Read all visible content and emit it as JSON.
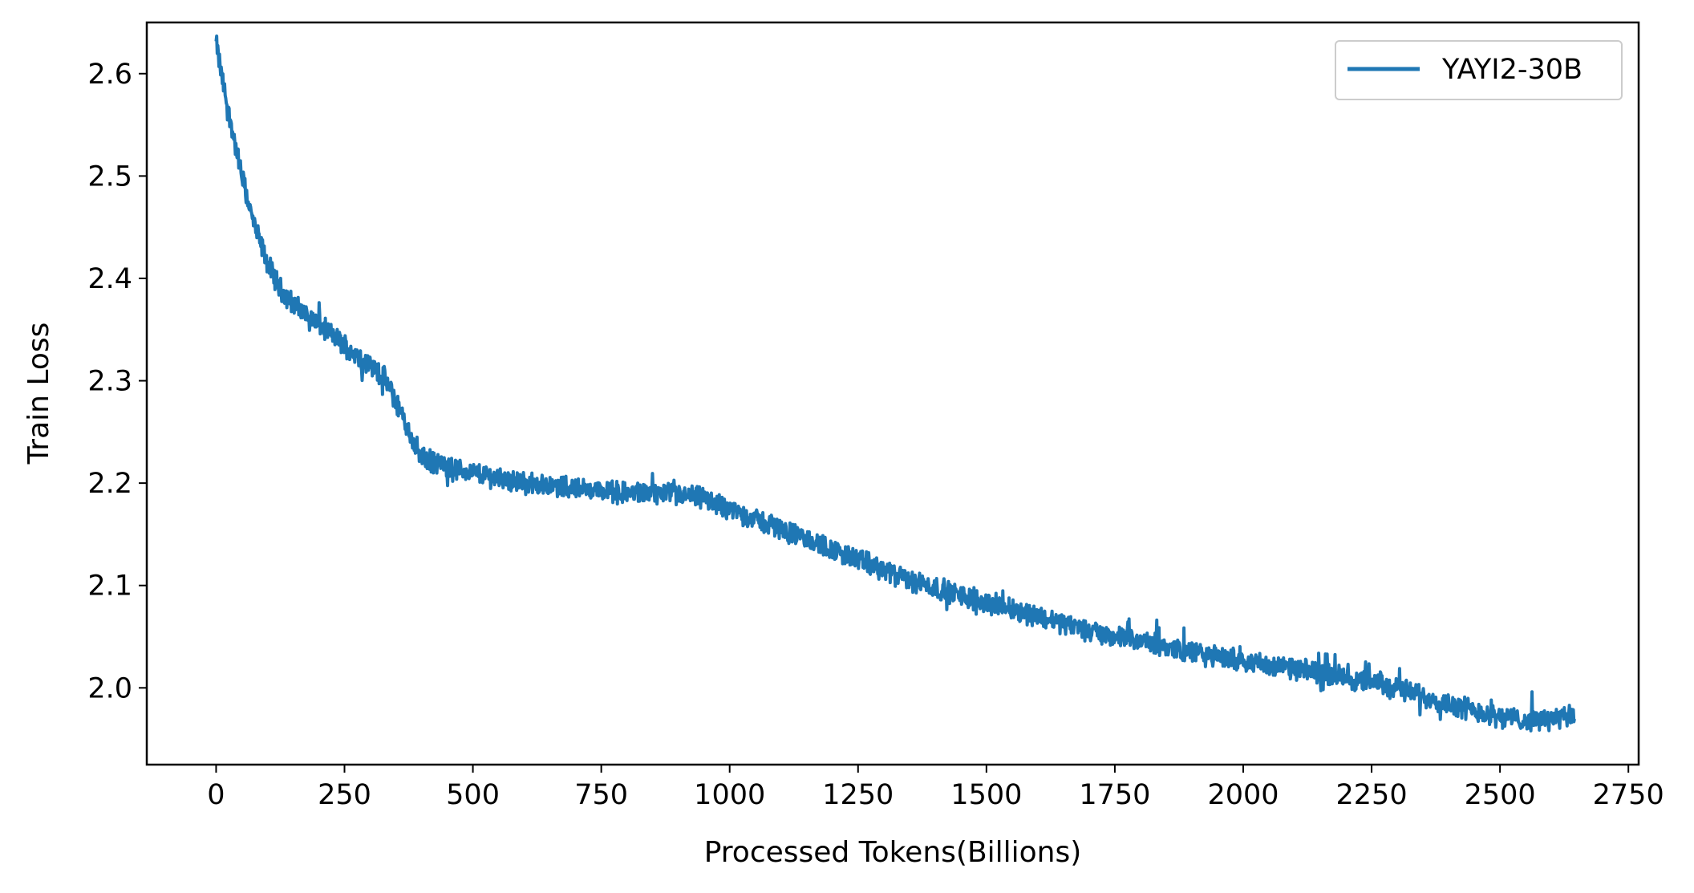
{
  "chart_data": {
    "type": "line",
    "title": "",
    "xlabel": "Processed Tokens(Billions)",
    "ylabel": "Train Loss",
    "xlim": [
      -135,
      2770
    ],
    "ylim": [
      1.925,
      2.65
    ],
    "xticks": [
      0,
      250,
      500,
      750,
      1000,
      1250,
      1500,
      1750,
      2000,
      2250,
      2500,
      2750
    ],
    "xtick_labels": [
      "0",
      "250",
      "500",
      "750",
      "1000",
      "1250",
      "1500",
      "1750",
      "2000",
      "2250",
      "2500",
      "2750"
    ],
    "yticks": [
      2.0,
      2.1,
      2.2,
      2.3,
      2.4,
      2.5,
      2.6
    ],
    "ytick_labels": [
      "2.0",
      "2.1",
      "2.2",
      "2.3",
      "2.4",
      "2.5",
      "2.6"
    ],
    "grid": false,
    "legend_position": "top-right",
    "series": [
      {
        "name": "YAYI2-30B",
        "color": "#1f77b4",
        "x": [
          0,
          10,
          25,
          50,
          75,
          100,
          125,
          150,
          175,
          200,
          225,
          250,
          275,
          300,
          325,
          350,
          375,
          400,
          425,
          450,
          500,
          550,
          600,
          650,
          700,
          750,
          800,
          850,
          900,
          950,
          1000,
          1050,
          1100,
          1150,
          1200,
          1250,
          1300,
          1350,
          1400,
          1450,
          1500,
          1550,
          1600,
          1650,
          1700,
          1750,
          1800,
          1850,
          1900,
          1950,
          2000,
          2050,
          2100,
          2150,
          2200,
          2250,
          2300,
          2350,
          2400,
          2450,
          2500,
          2550,
          2600,
          2645
        ],
        "y": [
          2.63,
          2.6,
          2.56,
          2.5,
          2.45,
          2.415,
          2.39,
          2.375,
          2.365,
          2.355,
          2.345,
          2.335,
          2.325,
          2.315,
          2.305,
          2.28,
          2.25,
          2.225,
          2.22,
          2.215,
          2.21,
          2.205,
          2.2,
          2.198,
          2.195,
          2.193,
          2.19,
          2.19,
          2.188,
          2.185,
          2.175,
          2.165,
          2.155,
          2.145,
          2.135,
          2.125,
          2.115,
          2.105,
          2.098,
          2.09,
          2.083,
          2.077,
          2.07,
          2.063,
          2.056,
          2.05,
          2.045,
          2.04,
          2.035,
          2.03,
          2.027,
          2.022,
          2.018,
          2.015,
          2.01,
          2.005,
          2.0,
          1.992,
          1.985,
          1.978,
          1.972,
          1.968,
          1.97,
          1.972
        ]
      }
    ]
  }
}
